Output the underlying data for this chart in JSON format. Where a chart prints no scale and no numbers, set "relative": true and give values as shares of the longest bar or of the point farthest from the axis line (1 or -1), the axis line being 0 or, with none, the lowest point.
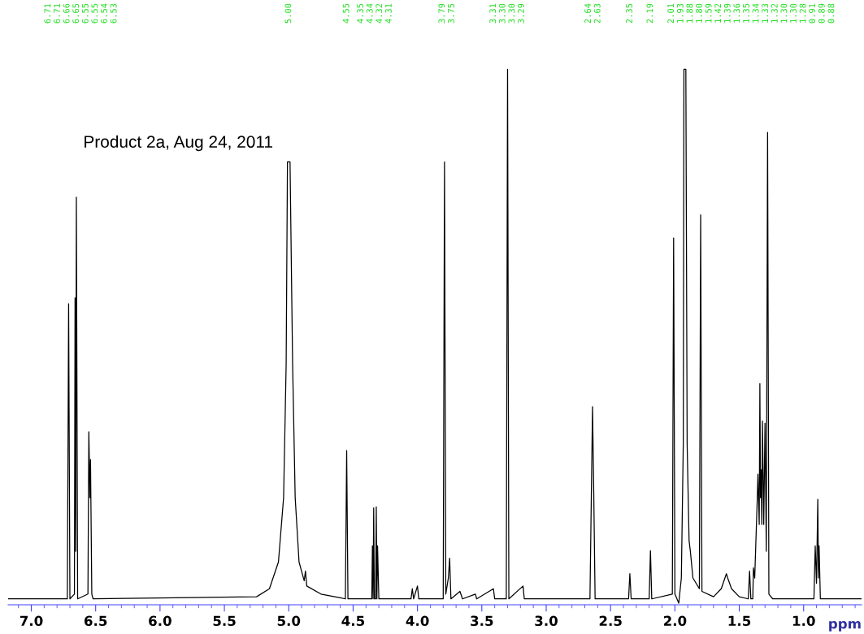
{
  "chart_data": {
    "type": "line",
    "title": "Product 2a, Aug 24, 2011",
    "xlabel": "ppm",
    "relative": true,
    "xlim": [
      7.18,
      0.55
    ],
    "xticks": [
      {
        "value": 7.0,
        "label": "7.0"
      },
      {
        "value": 6.5,
        "label": "6.5"
      },
      {
        "value": 6.0,
        "label": "6.0"
      },
      {
        "value": 5.5,
        "label": "5.5"
      },
      {
        "value": 5.0,
        "label": "5.0"
      },
      {
        "value": 4.5,
        "label": "4.5"
      },
      {
        "value": 4.0,
        "label": "4.0"
      },
      {
        "value": 3.5,
        "label": "3.5"
      },
      {
        "value": 3.0,
        "label": "3.0"
      },
      {
        "value": 2.5,
        "label": "2.5"
      },
      {
        "value": 2.0,
        "label": "2.0"
      },
      {
        "value": 1.5,
        "label": "1.5"
      },
      {
        "value": 1.0,
        "label": "1.0"
      }
    ],
    "grid": false,
    "tick_labels": "x",
    "marker": "none",
    "line_style": "solid",
    "series": [
      {
        "color": "#000000",
        "x": [
          7.18,
          6.72,
          6.71,
          6.7,
          6.665,
          6.66,
          6.655,
          6.65,
          6.64,
          6.56,
          6.553,
          6.545,
          6.54,
          6.53,
          6.52,
          5.25,
          5.15,
          5.08,
          5.04,
          5.02,
          5.01,
          5.0,
          4.99,
          4.97,
          4.95,
          4.92,
          4.88,
          4.87,
          4.86,
          4.75,
          4.6,
          4.56,
          4.55,
          4.54,
          4.355,
          4.35,
          4.345,
          4.34,
          4.335,
          4.325,
          4.32,
          4.315,
          4.31,
          4.3,
          4.05,
          4.04,
          4.03,
          4.0,
          3.99,
          3.8,
          3.79,
          3.78,
          3.76,
          3.75,
          3.74,
          3.67,
          3.65,
          3.55,
          3.54,
          3.41,
          3.4,
          3.31,
          3.3,
          3.29,
          3.18,
          3.17,
          2.66,
          2.64,
          2.63,
          2.62,
          2.36,
          2.35,
          2.34,
          2.2,
          2.19,
          2.18,
          2.02,
          2.01,
          2.0,
          1.97,
          1.95,
          1.935,
          1.93,
          1.915,
          1.905,
          1.89,
          1.88,
          1.86,
          1.81,
          1.8,
          1.79,
          1.7,
          1.64,
          1.6,
          1.59,
          1.56,
          1.5,
          1.43,
          1.42,
          1.41,
          1.395,
          1.39,
          1.38,
          1.36,
          1.355,
          1.345,
          1.34,
          1.335,
          1.33,
          1.325,
          1.32,
          1.31,
          1.3,
          1.29,
          1.28,
          1.27,
          1.24,
          0.92,
          0.91,
          0.9,
          0.89,
          0.885,
          0.88,
          0.87,
          0.55
        ],
        "values": [
          0.011,
          0.011,
          0.562,
          0.011,
          0.02,
          0.573,
          0.1,
          0.761,
          0.011,
          0.02,
          0.323,
          0.2,
          0.271,
          0.02,
          0.011,
          0.015,
          0.03,
          0.08,
          0.2,
          0.45,
          0.827,
          0.827,
          0.827,
          0.45,
          0.2,
          0.08,
          0.045,
          0.063,
          0.035,
          0.02,
          0.013,
          0.011,
          0.288,
          0.011,
          0.011,
          0.11,
          0.011,
          0.181,
          0.011,
          0.011,
          0.183,
          0.011,
          0.11,
          0.011,
          0.011,
          0.03,
          0.011,
          0.035,
          0.011,
          0.011,
          0.827,
          0.02,
          0.05,
          0.087,
          0.011,
          0.025,
          0.011,
          0.02,
          0.011,
          0.03,
          0.011,
          0.011,
          1.0,
          0.011,
          0.035,
          0.011,
          0.011,
          0.37,
          0.2,
          0.011,
          0.011,
          0.058,
          0.011,
          0.011,
          0.101,
          0.011,
          0.02,
          0.685,
          0.02,
          0.003,
          0.05,
          0.3,
          1.0,
          1.0,
          0.3,
          0.12,
          0.1,
          0.05,
          0.03,
          0.728,
          0.025,
          0.015,
          0.03,
          0.058,
          0.05,
          0.03,
          0.015,
          0.011,
          0.063,
          0.011,
          0.011,
          0.069,
          0.05,
          0.2,
          0.244,
          0.15,
          0.413,
          0.2,
          0.252,
          0.15,
          0.343,
          0.15,
          0.339,
          0.1,
          0.882,
          0.02,
          0.011,
          0.011,
          0.11,
          0.04,
          0.197,
          0.05,
          0.11,
          0.011,
          0.011
        ]
      }
    ],
    "annotations": [
      "6.71",
      "6.71",
      "6.66",
      "6.65",
      "6.55",
      "6.55",
      "6.54",
      "6.53",
      "5.00",
      "4.55",
      "4.35",
      "4.34",
      "4.32",
      "4.31",
      "3.79",
      "3.75",
      "3.31",
      "3.30",
      "3.30",
      "3.29",
      "2.64",
      "2.63",
      "2.35",
      "2.19",
      "2.01",
      "1.93",
      "1.88",
      "1.80",
      "1.59",
      "1.42",
      "1.39",
      "1.36",
      "1.35",
      "1.34",
      "1.33",
      "1.32",
      "1.30",
      "1.30",
      "1.28",
      "0.91",
      "0.89",
      "0.88"
    ]
  }
}
